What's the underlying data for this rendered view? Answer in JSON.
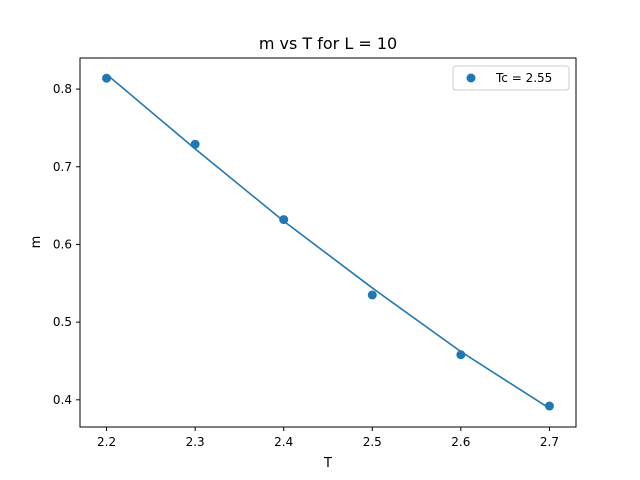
{
  "chart_data": {
    "type": "scatter",
    "title": "m vs T for L = 10",
    "xlabel": "T",
    "ylabel": "m",
    "xlim": [
      2.17,
      2.73
    ],
    "ylim": [
      0.365,
      0.84
    ],
    "x_ticks": [
      2.2,
      2.3,
      2.4,
      2.5,
      2.6,
      2.7
    ],
    "x_tick_labels": [
      "2.2",
      "2.3",
      "2.4",
      "2.5",
      "2.6",
      "2.7"
    ],
    "y_ticks": [
      0.4,
      0.5,
      0.6,
      0.7,
      0.8
    ],
    "y_tick_labels": [
      "0.4",
      "0.5",
      "0.6",
      "0.7",
      "0.8"
    ],
    "grid": false,
    "legend_position": "top-right",
    "series": [
      {
        "name": "Tc = 2.55",
        "kind": "scatter",
        "color": "#1f77b4",
        "x": [
          2.2,
          2.3,
          2.4,
          2.5,
          2.6,
          2.7
        ],
        "y": [
          0.814,
          0.729,
          0.632,
          0.535,
          0.458,
          0.392
        ]
      },
      {
        "kind": "line",
        "color": "#1f77b4",
        "x": [
          2.2,
          2.3,
          2.4,
          2.5,
          2.6,
          2.7
        ],
        "y": [
          0.819,
          0.723,
          0.63,
          0.544,
          0.462,
          0.389
        ]
      }
    ]
  }
}
